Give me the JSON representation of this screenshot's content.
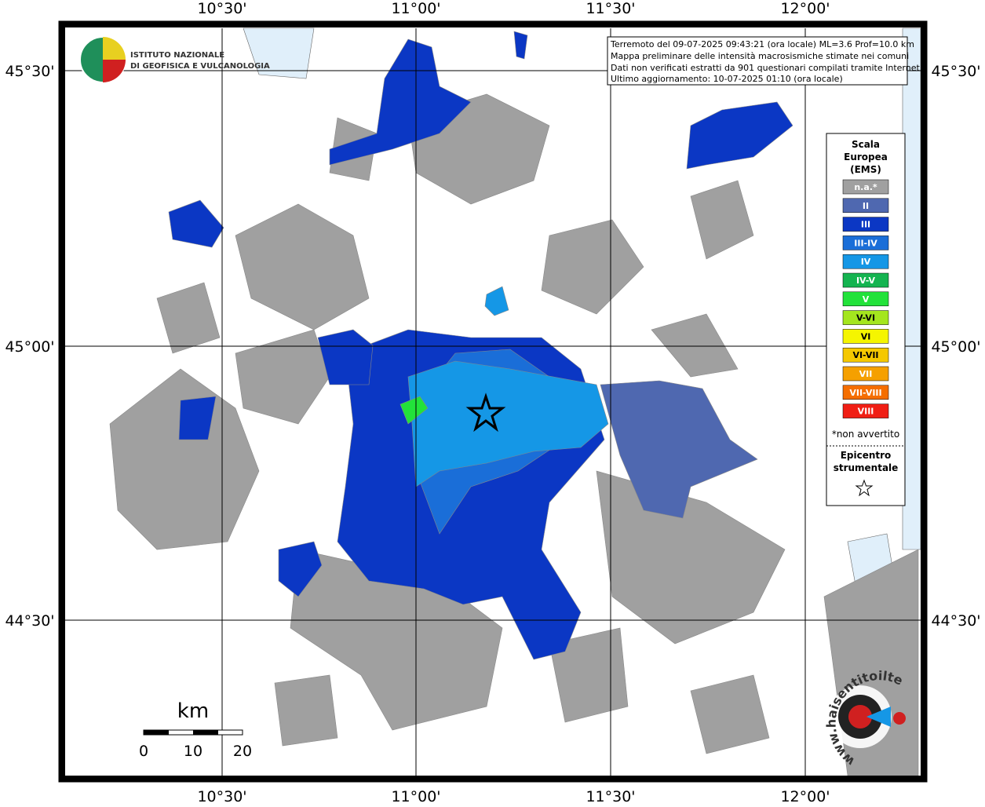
{
  "map": {
    "grid_labels": {
      "longitude": [
        "10°30'",
        "11°00'",
        "11°30'",
        "12°00'"
      ],
      "latitude": [
        "45°30'",
        "45°00'",
        "44°30'"
      ]
    },
    "info": [
      "Terremoto del 09-07-2025 09:43:21 (ora locale) ML=3.6 Prof=10.0 km",
      "Mappa preliminare delle intensità macrosismiche stimate nei comuni",
      "Dati non verificati estratti da 901 questionari compilati tramite Internet.",
      "Ultimo aggiornamento: 10-07-2025 01:10 (ora locale)"
    ],
    "legend": {
      "title": [
        "Scala",
        "Europea",
        "(EMS)"
      ],
      "items": [
        {
          "label": "n.a.*",
          "color": "#a0a0a0"
        },
        {
          "label": "II",
          "color": "#4f68b0"
        },
        {
          "label": "III",
          "color": "#0b37c4"
        },
        {
          "label": "III-IV",
          "color": "#1a6ed8"
        },
        {
          "label": "IV",
          "color": "#1597e6"
        },
        {
          "label": "IV-V",
          "color": "#14b450"
        },
        {
          "label": "V",
          "color": "#22e23a"
        },
        {
          "label": "V-VI",
          "color": "#a4e61e"
        },
        {
          "label": "VI",
          "color": "#f5f500"
        },
        {
          "label": "VI-VII",
          "color": "#f5c800"
        },
        {
          "label": "VII",
          "color": "#f5a000"
        },
        {
          "label": "VII-VIII",
          "color": "#f56e00"
        },
        {
          "label": "VIII",
          "color": "#f01e14"
        }
      ],
      "note": "*non avvertito",
      "epicenter_label": [
        "Epicentro",
        "strumentale"
      ]
    },
    "scale": {
      "unit": "km",
      "labels": [
        "0",
        "10",
        "20"
      ]
    },
    "logos": {
      "ingv": [
        "ISTITUTO NAZIONALE",
        "DI GEOFISICA E VULCANOLOGIA"
      ],
      "site": "www.haisentitoilterremoto.it"
    }
  }
}
